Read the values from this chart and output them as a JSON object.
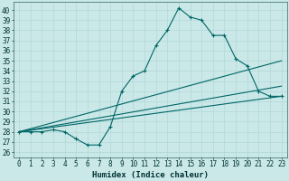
{
  "xlabel": "Humidex (Indice chaleur)",
  "background_color": "#cbe8e8",
  "line_color": "#006666",
  "grid_color": "#b0d8d8",
  "xlim": [
    -0.5,
    23.5
  ],
  "ylim": [
    25.5,
    40.8
  ],
  "yticks": [
    26,
    27,
    28,
    29,
    30,
    31,
    32,
    33,
    34,
    35,
    36,
    37,
    38,
    39,
    40
  ],
  "xticks": [
    0,
    1,
    2,
    3,
    4,
    5,
    6,
    7,
    8,
    9,
    10,
    11,
    12,
    13,
    14,
    15,
    16,
    17,
    18,
    19,
    20,
    21,
    22,
    23
  ],
  "series1_x": [
    0,
    1,
    2,
    3,
    4,
    5,
    6,
    7,
    8,
    9,
    10,
    11,
    12,
    13,
    14,
    15,
    16,
    17,
    18,
    19,
    20,
    21,
    22,
    23
  ],
  "series1_y": [
    28,
    28,
    28.0,
    28.2,
    28.0,
    27.3,
    26.7,
    26.7,
    28.5,
    32.0,
    33.5,
    34.0,
    36.5,
    38.0,
    40.2,
    39.3,
    39.0,
    37.5,
    37.5,
    35.2,
    34.5,
    32.0,
    31.5,
    31.5
  ],
  "series2_x": [
    0,
    23
  ],
  "series2_y": [
    28.0,
    31.5
  ],
  "series3_x": [
    0,
    23
  ],
  "series3_y": [
    28.0,
    32.5
  ],
  "series4_x": [
    0,
    23
  ],
  "series4_y": [
    28.0,
    35.0
  ]
}
